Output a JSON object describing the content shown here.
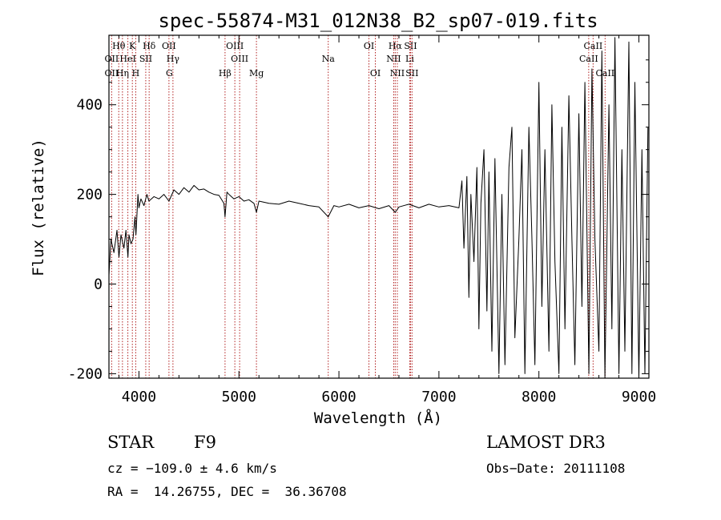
{
  "chart_data": {
    "type": "line",
    "title": "spec-55874-M31_012N38_B2_sp07-019.fits",
    "xlabel": "Wavelength (Å)",
    "ylabel": "Flux (relative)",
    "xlim": [
      3700,
      9100
    ],
    "ylim": [
      -210,
      555
    ],
    "x_ticks": [
      4000,
      5000,
      6000,
      7000,
      8000,
      9000
    ],
    "y_ticks": [
      -200,
      0,
      200,
      400
    ],
    "series": [
      {
        "name": "flux",
        "x": [
          3700,
          3720,
          3750,
          3780,
          3800,
          3820,
          3850,
          3870,
          3890,
          3900,
          3920,
          3940,
          3960,
          3970,
          3990,
          4000,
          4020,
          4050,
          4080,
          4100,
          4150,
          4200,
          4250,
          4300,
          4350,
          4400,
          4450,
          4500,
          4550,
          4600,
          4650,
          4700,
          4750,
          4800,
          4850,
          4861,
          4880,
          4900,
          4950,
          5000,
          5050,
          5100,
          5150,
          5175,
          5200,
          5300,
          5400,
          5500,
          5600,
          5700,
          5800,
          5893,
          5950,
          6000,
          6100,
          6200,
          6300,
          6400,
          6500,
          6563,
          6600,
          6700,
          6800,
          6900,
          7000,
          7100,
          7200,
          7230,
          7250,
          7280,
          7300,
          7320,
          7350,
          7380,
          7400,
          7420,
          7450,
          7480,
          7500,
          7530,
          7560,
          7600,
          7630,
          7660,
          7700,
          7730,
          7760,
          7800,
          7830,
          7860,
          7900,
          7930,
          7960,
          8000,
          8030,
          8060,
          8100,
          8130,
          8160,
          8200,
          8230,
          8260,
          8300,
          8330,
          8360,
          8400,
          8430,
          8460,
          8500,
          8530,
          8560,
          8600,
          8630,
          8660,
          8700,
          8730,
          8760,
          8800,
          8830,
          8860,
          8900,
          8930,
          8960,
          9000,
          9030,
          9060,
          9090
        ],
        "y": [
          20,
          100,
          70,
          120,
          60,
          110,
          80,
          120,
          60,
          110,
          90,
          100,
          150,
          110,
          200,
          170,
          190,
          175,
          200,
          185,
          195,
          190,
          200,
          185,
          210,
          200,
          215,
          205,
          220,
          210,
          212,
          205,
          200,
          198,
          180,
          150,
          205,
          200,
          190,
          195,
          185,
          188,
          180,
          160,
          185,
          180,
          178,
          185,
          180,
          175,
          172,
          150,
          175,
          172,
          178,
          170,
          175,
          168,
          175,
          160,
          172,
          178,
          170,
          178,
          172,
          175,
          170,
          230,
          80,
          240,
          -30,
          200,
          50,
          260,
          -100,
          180,
          300,
          -60,
          250,
          -150,
          280,
          -200,
          200,
          -180,
          260,
          350,
          -120,
          100,
          300,
          -200,
          350,
          100,
          -180,
          450,
          -50,
          300,
          -150,
          400,
          50,
          -200,
          350,
          -100,
          420,
          100,
          -180,
          380,
          -50,
          450,
          -200,
          480,
          100,
          -150,
          520,
          -210,
          400,
          -100,
          550,
          -200,
          300,
          -150,
          540,
          -200,
          450,
          -210,
          300,
          -200,
          350
        ]
      }
    ],
    "line_marks": [
      {
        "label": "Hθ",
        "x": 3798,
        "row": 1
      },
      {
        "label": "K",
        "x": 3934,
        "row": 1
      },
      {
        "label": "Hδ",
        "x": 4102,
        "row": 1
      },
      {
        "label": "OII",
        "x": 4300,
        "row": 1
      },
      {
        "label": "OIII",
        "x": 4959,
        "row": 1
      },
      {
        "label": "OI",
        "x": 6300,
        "row": 1
      },
      {
        "label": "Hα",
        "x": 6563,
        "row": 1
      },
      {
        "label": "SII",
        "x": 6716,
        "row": 1
      },
      {
        "label": "CaII",
        "x": 8542,
        "row": 1
      },
      {
        "label": "OII",
        "x": 3727,
        "row": 2
      },
      {
        "label": "HeI",
        "x": 3889,
        "row": 2
      },
      {
        "label": "SII",
        "x": 4068,
        "row": 2
      },
      {
        "label": "Hγ",
        "x": 4340,
        "row": 2
      },
      {
        "label": "OIII",
        "x": 5007,
        "row": 2
      },
      {
        "label": "Na",
        "x": 5893,
        "row": 2
      },
      {
        "label": "NII",
        "x": 6548,
        "row": 2
      },
      {
        "label": "Li",
        "x": 6708,
        "row": 2
      },
      {
        "label": "CaII",
        "x": 8498,
        "row": 2
      },
      {
        "label": "OII",
        "x": 3727,
        "row": 3
      },
      {
        "label": "Hη",
        "x": 3835,
        "row": 3
      },
      {
        "label": "H",
        "x": 3968,
        "row": 3
      },
      {
        "label": "G",
        "x": 4304,
        "row": 3
      },
      {
        "label": "Hβ",
        "x": 4861,
        "row": 3
      },
      {
        "label": "Mg",
        "x": 5175,
        "row": 3
      },
      {
        "label": "OI",
        "x": 6364,
        "row": 3
      },
      {
        "label": "NII",
        "x": 6584,
        "row": 3
      },
      {
        "label": "SII",
        "x": 6731,
        "row": 3
      },
      {
        "label": "CaII",
        "x": 8662,
        "row": 3
      }
    ],
    "annotation_colors": {
      "line_marks": "#b22222",
      "spectrum": "#000000"
    }
  },
  "info": {
    "class": "STAR",
    "subclass": "F9",
    "survey": "LAMOST DR3",
    "redshift": "cz = −109.0 ± 4.6 km/s",
    "obs_date": "Obs−Date: 20111108",
    "coords": "RA =  14.26755, DEC =  36.36708"
  }
}
